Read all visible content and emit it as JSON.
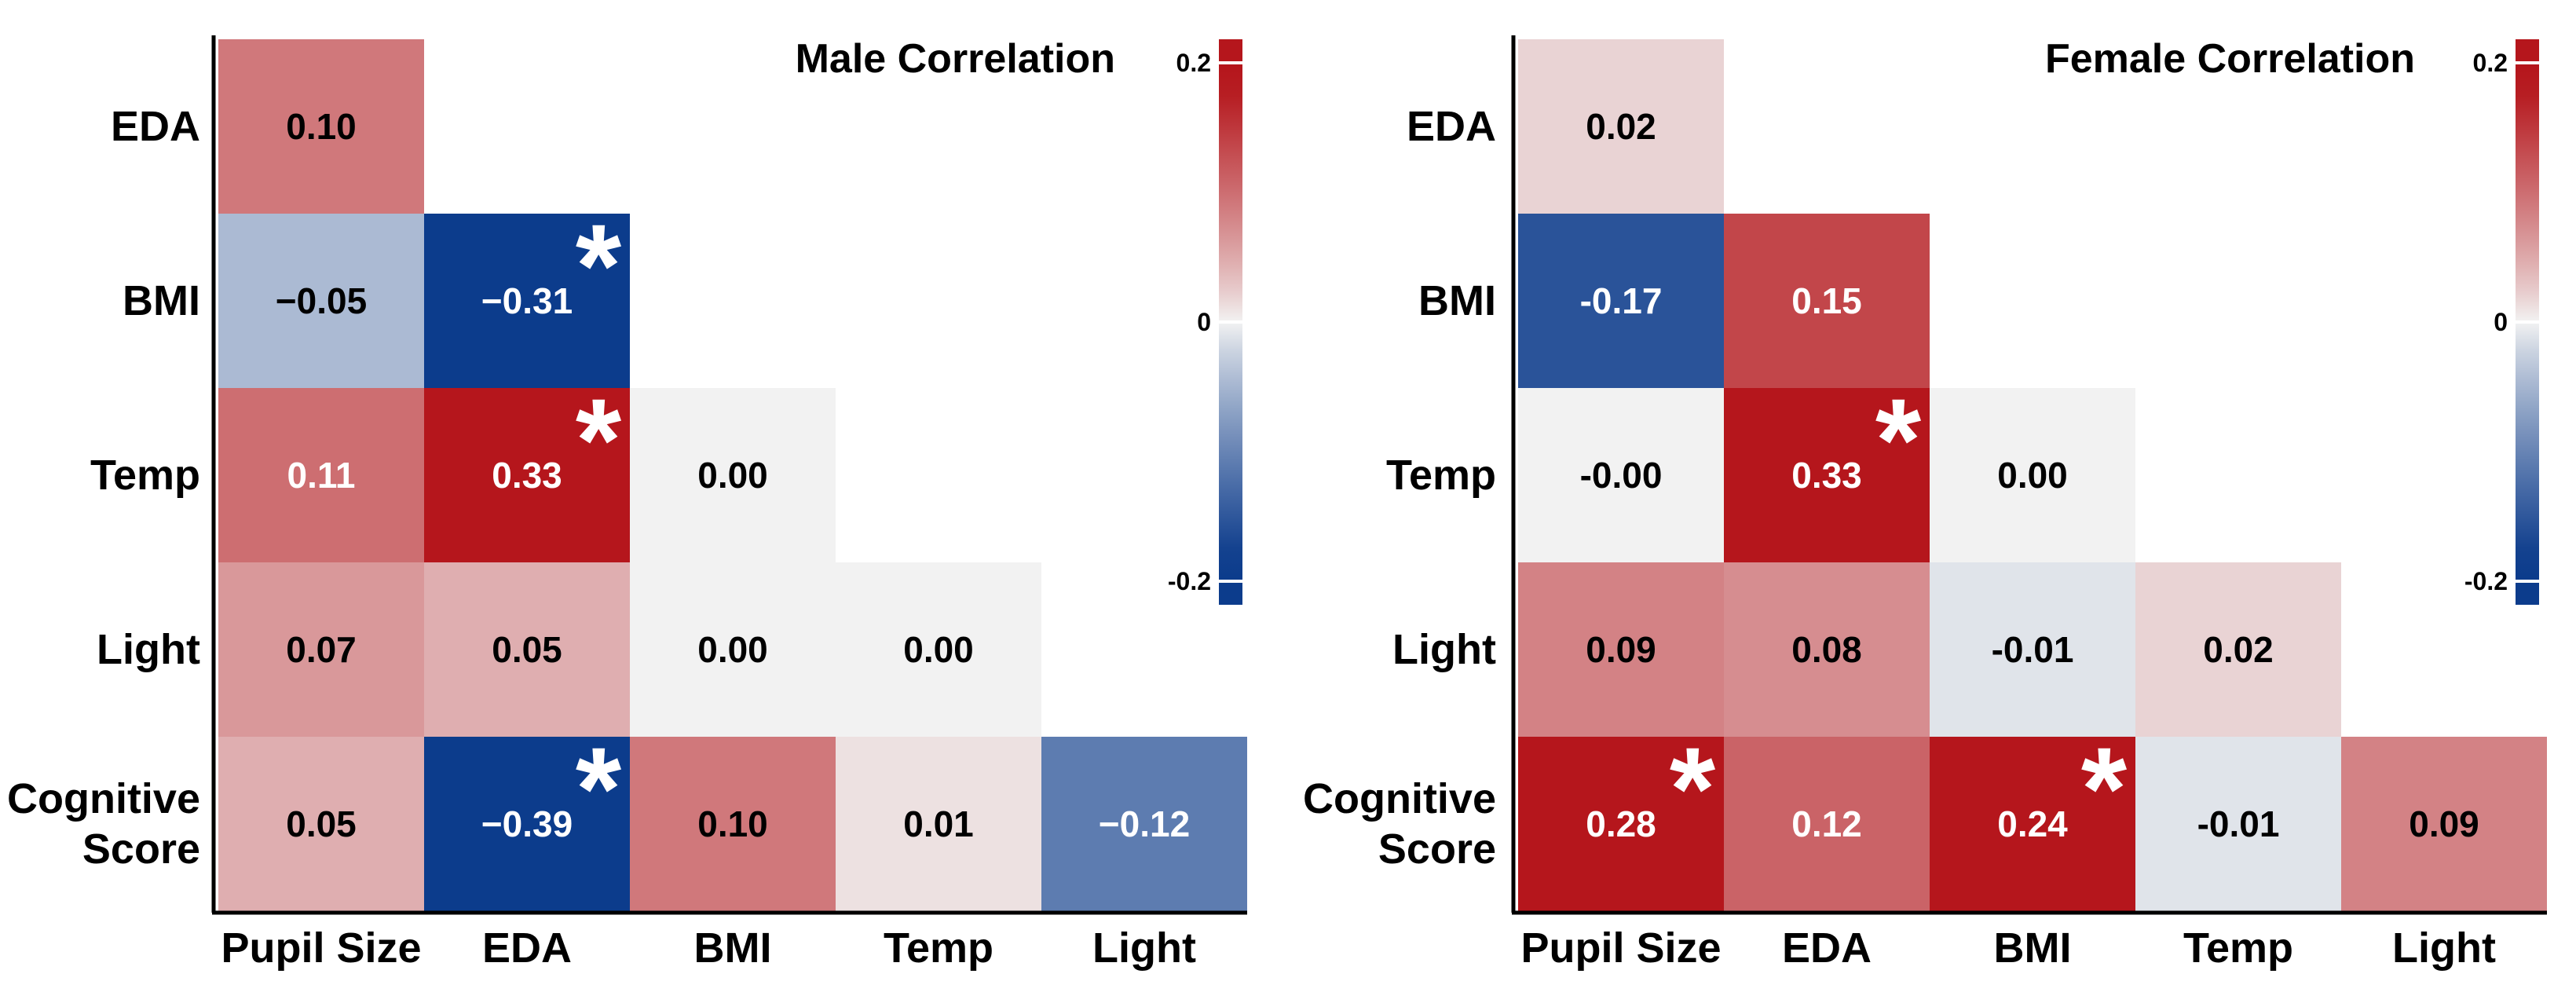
{
  "chart_data": [
    {
      "type": "heatmap",
      "title": "Male Correlation",
      "rows": [
        "EDA",
        "BMI",
        "Temp",
        "Light",
        "Cognitive Score"
      ],
      "columns": [
        "Pupil Size",
        "EDA",
        "BMI",
        "Temp",
        "Light"
      ],
      "values": [
        [
          0.1,
          null,
          null,
          null,
          null
        ],
        [
          -0.05,
          -0.31,
          null,
          null,
          null
        ],
        [
          0.11,
          0.33,
          0.0,
          null,
          null
        ],
        [
          0.07,
          0.05,
          0.0,
          0.0,
          null
        ],
        [
          0.05,
          -0.39,
          0.1,
          0.01,
          -0.12
        ]
      ],
      "cell_labels": [
        [
          "0.10",
          null,
          null,
          null,
          null
        ],
        [
          "−0.05",
          "−0.31",
          null,
          null,
          null
        ],
        [
          "0.11",
          "0.33",
          "0.00",
          null,
          null
        ],
        [
          "0.07",
          "0.05",
          "0.00",
          "0.00",
          null
        ],
        [
          "0.05",
          "−0.39",
          "0.10",
          "0.01",
          "−0.12"
        ]
      ],
      "significant": [
        [
          false,
          false,
          false,
          false,
          false
        ],
        [
          false,
          true,
          false,
          false,
          false
        ],
        [
          false,
          true,
          false,
          false,
          false
        ],
        [
          false,
          false,
          false,
          false,
          false
        ],
        [
          false,
          true,
          false,
          false,
          false
        ]
      ],
      "significance_marker": "*",
      "colorbar": {
        "range": [
          -0.2,
          0.2
        ],
        "ticks": [
          "0.2",
          "0",
          "-0.2"
        ],
        "tick_values": [
          0.2,
          0,
          -0.2
        ]
      },
      "colorbar_placement": "top-right"
    },
    {
      "type": "heatmap",
      "title": "Female Correlation",
      "rows": [
        "EDA",
        "BMI",
        "Temp",
        "Light",
        "Cognitive Score"
      ],
      "columns": [
        "Pupil Size",
        "EDA",
        "BMI",
        "Temp",
        "Light"
      ],
      "values": [
        [
          0.02,
          null,
          null,
          null,
          null
        ],
        [
          -0.17,
          0.15,
          null,
          null,
          null
        ],
        [
          0.0,
          0.33,
          0.0,
          null,
          null
        ],
        [
          0.09,
          0.08,
          -0.01,
          0.02,
          null
        ],
        [
          0.28,
          0.12,
          0.24,
          -0.01,
          0.09
        ]
      ],
      "cell_labels": [
        [
          "0.02",
          null,
          null,
          null,
          null
        ],
        [
          "-0.17",
          "0.15",
          null,
          null,
          null
        ],
        [
          "-0.00",
          "0.33",
          "0.00",
          null,
          null
        ],
        [
          "0.09",
          "0.08",
          "-0.01",
          "0.02",
          null
        ],
        [
          "0.28",
          "0.12",
          "0.24",
          "-0.01",
          "0.09"
        ]
      ],
      "significant": [
        [
          false,
          false,
          false,
          false,
          false
        ],
        [
          false,
          false,
          false,
          false,
          false
        ],
        [
          false,
          true,
          false,
          false,
          false
        ],
        [
          false,
          false,
          false,
          false,
          false
        ],
        [
          true,
          false,
          true,
          false,
          false
        ]
      ],
      "significance_marker": "*",
      "colorbar": {
        "range": [
          -0.2,
          0.2
        ],
        "ticks": [
          "0.2",
          "0",
          "-0.2"
        ],
        "tick_values": [
          0.2,
          0,
          -0.2
        ]
      },
      "colorbar_placement": "top-right"
    }
  ],
  "colors": {
    "negative": "#0c3c8c",
    "neutral": "#f2f2f2",
    "positive": "#b5161c",
    "axis": "#000000",
    "significance_marker": "#ffffff"
  }
}
